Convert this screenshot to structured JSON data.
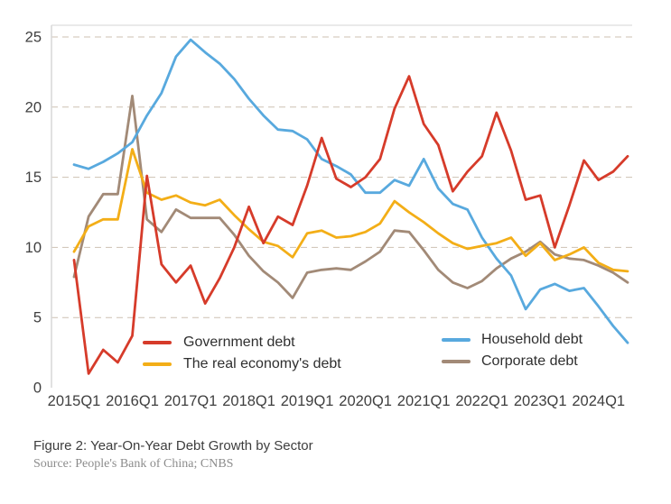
{
  "figure": {
    "caption": "Figure 2: Year-On-Year Debt Growth by Sector",
    "source": "Source: People's Bank of China; CNBS"
  },
  "chart_data": {
    "type": "line",
    "x_unit": "quarter",
    "x_range": [
      "2015Q1",
      "2024Q3"
    ],
    "quarters": 39,
    "x_tick_labels": [
      "2015Q1",
      "2016Q1",
      "2017Q1",
      "2018Q1",
      "2019Q1",
      "2020Q1",
      "2021Q1",
      "2022Q1",
      "2023Q1",
      "2024Q1"
    ],
    "x_tick_quarter_index": [
      0,
      4,
      8,
      12,
      16,
      20,
      24,
      28,
      32,
      36
    ],
    "y_ticks": [
      0,
      5,
      10,
      15,
      20,
      25
    ],
    "ylim": [
      0,
      25
    ],
    "xlabel": "",
    "ylabel": "",
    "grid": "horizontal dashed lines at 5,10,15,20,25",
    "legend_position": "inside bottom, two columns",
    "colors": {
      "grid": "#cdc1b2",
      "axis_left": "#d7d7d7",
      "axis_top": "#e4e4e4",
      "tick_text": "#3f3f3f"
    },
    "series": [
      {
        "name": "Government debt",
        "color": "#d63b2a",
        "values": [
          9.1,
          1.0,
          2.7,
          1.8,
          3.7,
          15.1,
          8.8,
          7.5,
          8.7,
          6.0,
          7.8,
          10.0,
          12.9,
          10.3,
          12.2,
          11.6,
          14.4,
          17.8,
          14.9,
          14.3,
          15.0,
          16.3,
          19.9,
          22.2,
          18.8,
          17.3,
          14.0,
          15.4,
          16.5,
          19.6,
          16.9,
          13.4,
          13.7,
          10.0,
          13.0,
          16.2,
          14.8,
          15.4,
          16.5
        ]
      },
      {
        "name": "The real economy's debt",
        "color": "#f3ae17",
        "values": [
          9.7,
          11.5,
          12.0,
          12.0,
          17.0,
          13.9,
          13.4,
          13.7,
          13.2,
          13.0,
          13.4,
          12.3,
          11.3,
          10.4,
          10.1,
          9.3,
          11.0,
          11.2,
          10.7,
          10.8,
          11.1,
          11.7,
          13.3,
          12.5,
          11.8,
          11.0,
          10.3,
          9.9,
          10.1,
          10.3,
          10.7,
          9.4,
          10.3,
          9.1,
          9.5,
          10.0,
          8.9,
          8.4,
          8.3
        ]
      },
      {
        "name": "Household debt",
        "color": "#58a9de",
        "values": [
          15.9,
          15.6,
          16.1,
          16.7,
          17.5,
          19.4,
          21.0,
          23.6,
          24.8,
          23.9,
          23.1,
          22.0,
          20.6,
          19.4,
          18.4,
          18.3,
          17.7,
          16.3,
          15.8,
          15.2,
          13.9,
          13.9,
          14.8,
          14.4,
          16.3,
          14.2,
          13.1,
          12.7,
          10.7,
          9.2,
          8.0,
          5.6,
          7.0,
          7.4,
          6.9,
          7.1,
          5.8,
          4.4,
          3.2
        ]
      },
      {
        "name": "Corporate debt",
        "color": "#a28a77",
        "values": [
          7.9,
          12.2,
          13.8,
          13.8,
          20.8,
          12.0,
          11.1,
          12.7,
          12.1,
          12.1,
          12.1,
          10.9,
          9.4,
          8.3,
          7.5,
          6.4,
          8.2,
          8.4,
          8.5,
          8.4,
          9.0,
          9.7,
          11.2,
          11.1,
          9.8,
          8.4,
          7.5,
          7.1,
          7.6,
          8.5,
          9.2,
          9.7,
          10.4,
          9.5,
          9.2,
          9.1,
          8.7,
          8.2,
          7.5
        ]
      }
    ],
    "draw_order": [
      3,
      2,
      1,
      0
    ]
  }
}
